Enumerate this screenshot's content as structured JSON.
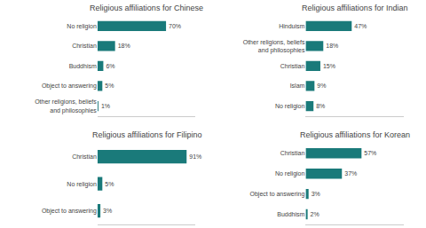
{
  "chart_data": [
    {
      "type": "bar",
      "orientation": "horizontal",
      "title": "Religious affiliations for Chinese",
      "categories": [
        "No religion",
        "Christian",
        "Buddhism",
        "Object to answering",
        "Other religions, beliefs\nand philosophies"
      ],
      "values": [
        70,
        18,
        6,
        5,
        1
      ],
      "value_labels": [
        "70%",
        "18%",
        "6%",
        "5%",
        "1%"
      ],
      "color": "#1a7a7a",
      "xlim": [
        0,
        100
      ],
      "xticks": [],
      "data_labels": true,
      "tick_labels": "y",
      "grid": false
    },
    {
      "type": "bar",
      "orientation": "horizontal",
      "title": "Religious affiliations for Indian",
      "categories": [
        "Hinduism",
        "Other religions, beliefs\nand philosophies",
        "Christian",
        "Islam",
        "No religion"
      ],
      "values": [
        47,
        18,
        15,
        9,
        8
      ],
      "value_labels": [
        "47%",
        "18%",
        "15%",
        "9%",
        "8%"
      ],
      "color": "#1a7a7a",
      "xlim": [
        0,
        100
      ],
      "xticks": [],
      "data_labels": true,
      "tick_labels": "y",
      "grid": false
    },
    {
      "type": "bar",
      "orientation": "horizontal",
      "title": "Religious affiliations for Filipino",
      "categories": [
        "Christian",
        "No religion",
        "Object to answering"
      ],
      "values": [
        91,
        5,
        3
      ],
      "value_labels": [
        "91%",
        "5%",
        "3%"
      ],
      "color": "#1a7a7a",
      "xlim": [
        0,
        100
      ],
      "xticks": [],
      "data_labels": true,
      "tick_labels": "y",
      "grid": false
    },
    {
      "type": "bar",
      "orientation": "horizontal",
      "title": "Religious affiliations for Korean",
      "categories": [
        "Christian",
        "No religion",
        "Object to answering",
        "Buddhism"
      ],
      "values": [
        57,
        37,
        3,
        2
      ],
      "value_labels": [
        "57%",
        "37%",
        "3%",
        "2%"
      ],
      "color": "#1a7a7a",
      "xlim": [
        0,
        100
      ],
      "xticks": [],
      "data_labels": true,
      "tick_labels": "y",
      "grid": false
    }
  ]
}
